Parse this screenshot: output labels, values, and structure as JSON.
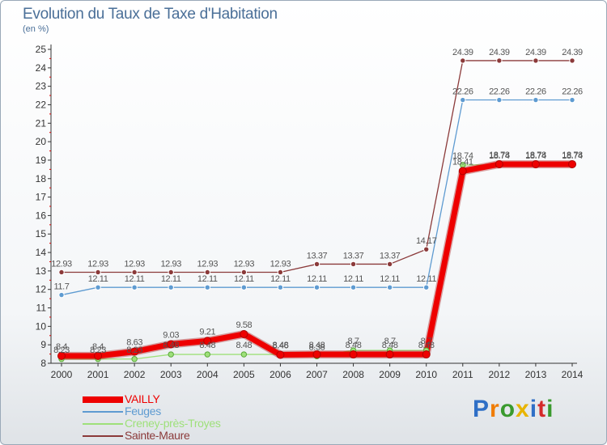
{
  "chart_data": {
    "type": "line",
    "title": "Evolution du Taux de Taxe d'Habitation",
    "ylabel": "(en %)",
    "xlabel": "",
    "ylim": [
      8,
      25
    ],
    "yticks": [
      8,
      9,
      10,
      11,
      12,
      13,
      14,
      15,
      16,
      17,
      18,
      19,
      20,
      21,
      22,
      23,
      24,
      25
    ],
    "categories": [
      "2000",
      "2001",
      "2002",
      "2003",
      "2004",
      "2005",
      "2006",
      "2007",
      "2008",
      "2009",
      "2010",
      "2011",
      "2012",
      "2013",
      "2014"
    ],
    "grid": false,
    "legend_position": "bottom-left",
    "series": [
      {
        "name": "VAILLY",
        "color": "#ee0000",
        "values": [
          8.4,
          8.4,
          8.63,
          9.03,
          9.21,
          9.58,
          8.46,
          8.48,
          8.48,
          8.48,
          8.48,
          18.41,
          18.78,
          18.78,
          18.78
        ],
        "labels": [
          "8.4",
          "8.4",
          "8.63",
          "9.03",
          "9.21",
          "9.58",
          "8.46",
          "8.48",
          "8.48",
          "8.48",
          "8.48",
          "18.41",
          "18.78",
          "18.78",
          "18.78"
        ]
      },
      {
        "name": "Feuges",
        "color": "#5e9bd1",
        "values": [
          11.7,
          12.11,
          12.11,
          12.11,
          12.11,
          12.11,
          12.11,
          12.11,
          12.11,
          12.11,
          12.11,
          22.26,
          22.26,
          22.26,
          22.26
        ],
        "labels": [
          "11.7",
          "12.11",
          "12.11",
          "12.11",
          "12.11",
          "12.11",
          "12.11",
          "12.11",
          "12.11",
          "12.11",
          "12.11",
          "22.26",
          "22.26",
          "22.26",
          "22.26"
        ]
      },
      {
        "name": "Creney-près-Troyes",
        "color": "#9ee07a",
        "values": [
          8.23,
          8.23,
          8.23,
          8.48,
          8.48,
          8.48,
          8.48,
          8.38,
          8.7,
          8.7,
          8.7,
          18.74,
          18.74,
          18.74,
          18.74
        ],
        "labels": [
          "8.23",
          "8.23",
          "8.23",
          "8.48",
          "8.48",
          "8.48",
          "8.48",
          "8.38",
          "8.7",
          "8.7",
          "8.7",
          "18.74",
          "18.74",
          "18.74",
          "18.74"
        ]
      },
      {
        "name": "Sainte-Maure",
        "color": "#8b3a3a",
        "values": [
          12.93,
          12.93,
          12.93,
          12.93,
          12.93,
          12.93,
          12.93,
          13.37,
          13.37,
          13.37,
          14.17,
          24.39,
          24.39,
          24.39,
          24.39
        ],
        "labels": [
          "12.93",
          "12.93",
          "12.93",
          "12.93",
          "12.93",
          "12.93",
          "12.93",
          "13.37",
          "13.37",
          "13.37",
          "14.17",
          "24.39",
          "24.39",
          "24.39",
          "24.39"
        ]
      }
    ]
  },
  "logo": {
    "letters": [
      "P",
      "r",
      "o",
      "x",
      "i",
      "t",
      "i"
    ],
    "colors": [
      "#2f6fc6",
      "#f07c00",
      "#3a9a2e",
      "#e8b400",
      "#2f6fc6",
      "#d42a2a",
      "#3a9a2e"
    ]
  }
}
